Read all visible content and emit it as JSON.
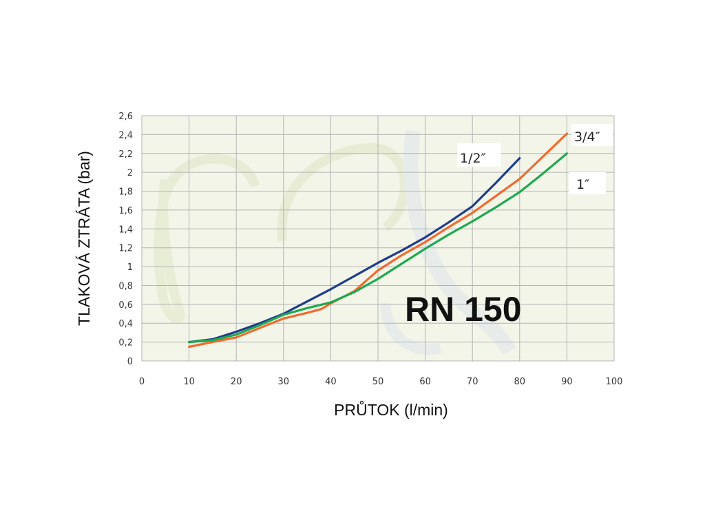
{
  "chart_data": {
    "type": "line",
    "title": "",
    "annotation": "RN 150",
    "xlabel": "PRŮTOK (l/min)",
    "ylabel": "TLAKOVÁ ZTRÁTA (bar)",
    "xlim": [
      0,
      100
    ],
    "ylim": [
      0,
      2.6
    ],
    "x_ticks": [
      "0",
      "10",
      "20",
      "30",
      "40",
      "50",
      "60",
      "70",
      "80",
      "90",
      "100"
    ],
    "y_ticks": [
      "0",
      "0,2",
      "0,4",
      "0,6",
      "0,8",
      "1",
      "1,2",
      "1,4",
      "1,6",
      "1,8",
      "2",
      "2,2",
      "2,4",
      "2,6"
    ],
    "grid": true,
    "background": "#f2f5e8",
    "series": [
      {
        "name": "1/2″",
        "color": "#1f3c8c",
        "x": [
          10,
          15,
          20,
          25,
          30,
          35,
          40,
          45,
          50,
          55,
          60,
          65,
          70,
          75,
          80
        ],
        "y": [
          0.2,
          0.23,
          0.31,
          0.4,
          0.5,
          0.63,
          0.76,
          0.9,
          1.04,
          1.17,
          1.31,
          1.47,
          1.64,
          1.89,
          2.15
        ]
      },
      {
        "name": "3/4″",
        "color": "#f26a2e",
        "x": [
          10,
          15,
          20,
          25,
          30,
          35,
          38,
          40,
          45,
          50,
          55,
          60,
          65,
          70,
          75,
          80,
          85,
          90
        ],
        "y": [
          0.15,
          0.2,
          0.25,
          0.35,
          0.45,
          0.51,
          0.55,
          0.61,
          0.74,
          0.96,
          1.12,
          1.26,
          1.42,
          1.57,
          1.75,
          1.93,
          2.17,
          2.41
        ]
      },
      {
        "name": "1″",
        "color": "#1fa84f",
        "x": [
          10,
          15,
          20,
          25,
          30,
          35,
          40,
          45,
          50,
          55,
          60,
          65,
          70,
          75,
          80,
          85,
          90
        ],
        "y": [
          0.2,
          0.22,
          0.28,
          0.38,
          0.49,
          0.56,
          0.62,
          0.73,
          0.87,
          1.03,
          1.19,
          1.34,
          1.48,
          1.63,
          1.79,
          1.99,
          2.2
        ]
      }
    ]
  }
}
